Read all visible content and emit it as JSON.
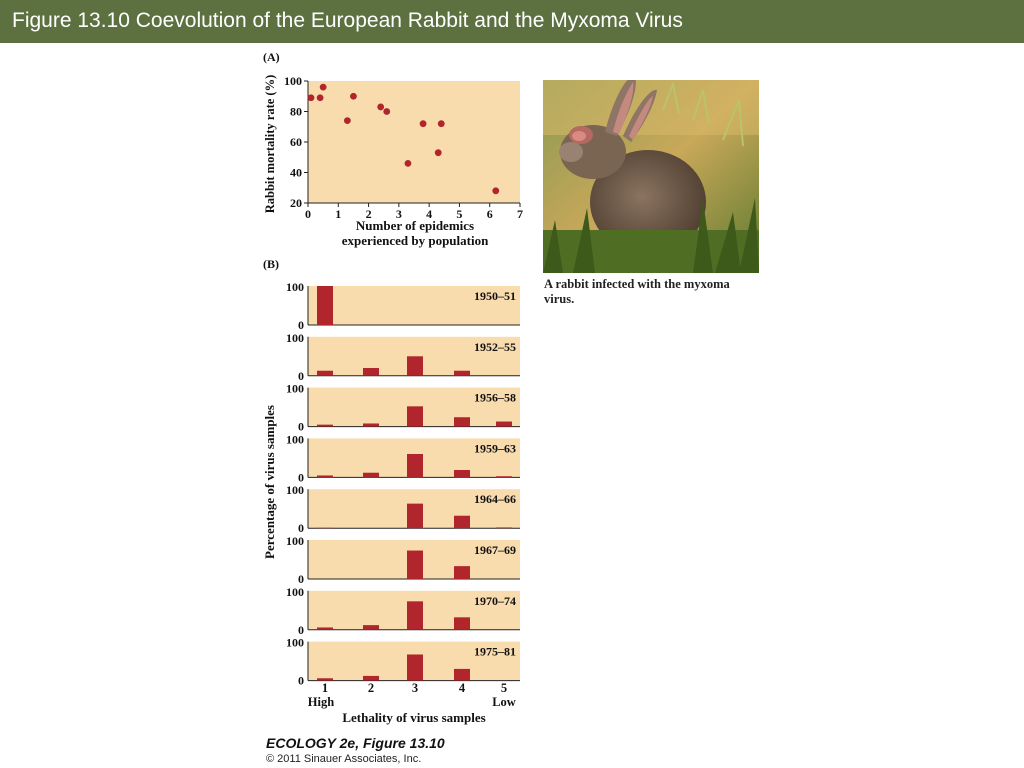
{
  "slide": {
    "title": "Figure 13.10  Coevolution of the European Rabbit and the Myxoma Virus",
    "colors": {
      "title_bar": "#5c7040",
      "plot_bg": "#f9dcae",
      "mark": "#b1262d"
    }
  },
  "photo": {
    "icon": "rabbit-photo",
    "caption": "A rabbit infected with the myxoma virus."
  },
  "credit": {
    "line1": "ECOLOGY 2e, Figure 13.10",
    "line2": "© 2011 Sinauer Associates, Inc."
  },
  "chart_data": [
    {
      "panel_label": "(A)",
      "type": "scatter",
      "xlabel": [
        "Number of epidemics",
        "experienced by population"
      ],
      "ylabel": "Rabbit mortality rate (%)",
      "xlim": [
        0,
        7
      ],
      "ylim": [
        20,
        100
      ],
      "xticks": [
        0,
        1,
        2,
        3,
        4,
        5,
        6,
        7
      ],
      "yticks": [
        20,
        40,
        60,
        80,
        100
      ],
      "grid": false,
      "points": [
        {
          "x": 0.1,
          "y": 89
        },
        {
          "x": 0.4,
          "y": 89
        },
        {
          "x": 0.5,
          "y": 96
        },
        {
          "x": 1.3,
          "y": 74
        },
        {
          "x": 1.5,
          "y": 90
        },
        {
          "x": 2.4,
          "y": 83
        },
        {
          "x": 2.6,
          "y": 80
        },
        {
          "x": 3.3,
          "y": 46
        },
        {
          "x": 3.8,
          "y": 72
        },
        {
          "x": 4.3,
          "y": 53
        },
        {
          "x": 4.4,
          "y": 72
        },
        {
          "x": 6.2,
          "y": 28
        }
      ]
    },
    {
      "panel_label": "(B)",
      "type": "bar",
      "ylabel": "Percentage of virus samples",
      "xlabel": "Lethality of virus samples",
      "categories": [
        "1",
        "2",
        "3",
        "4",
        "5"
      ],
      "category_notes": {
        "1": "High",
        "5": "Low"
      },
      "ylim": [
        0,
        100
      ],
      "yticks": [
        0,
        100
      ],
      "series": [
        {
          "name": "1950–51",
          "values": [
            100,
            0,
            0,
            0,
            0
          ]
        },
        {
          "name": "1952–55",
          "values": [
            13,
            20,
            50,
            13,
            0
          ]
        },
        {
          "name": "1956–58",
          "values": [
            5,
            8,
            52,
            24,
            13
          ]
        },
        {
          "name": "1959–63",
          "values": [
            5,
            12,
            60,
            19,
            3
          ]
        },
        {
          "name": "1964–66",
          "values": [
            1,
            0,
            63,
            32,
            2
          ]
        },
        {
          "name": "1967–69",
          "values": [
            0,
            0,
            73,
            33,
            0
          ]
        },
        {
          "name": "1970–74",
          "values": [
            6,
            12,
            73,
            32,
            0
          ]
        },
        {
          "name": "1975–81",
          "values": [
            6,
            12,
            67,
            30,
            0
          ]
        }
      ]
    }
  ]
}
